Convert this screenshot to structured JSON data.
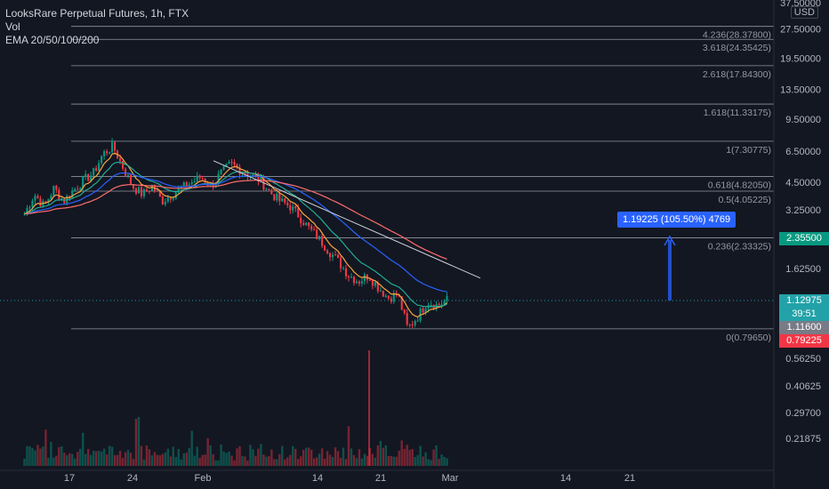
{
  "legend": {
    "title": "LooksRare Perpetual Futures, 1h, FTX",
    "vol": "Vol",
    "ema": "EMA 20/50/100/200"
  },
  "currency": "USD",
  "price_tags": [
    {
      "key": "target",
      "value": "2.35500",
      "color": "#089981"
    },
    {
      "key": "last",
      "value": "1.12975",
      "color": "#22a2a8"
    },
    {
      "key": "countdown",
      "value": "39:51",
      "color": "#22a2a8"
    },
    {
      "key": "other",
      "value": "1.11600",
      "color": "#787b86"
    },
    {
      "key": "low",
      "value": "0.79225",
      "color": "#f23645"
    }
  ],
  "measure_label": "1.19225 (105.50%) 4769",
  "chart_data": {
    "type": "candlestick",
    "y_scale": "log",
    "y_tick_labels": [
      "37.50000",
      "27.50000",
      "19.50000",
      "13.50000",
      "9.50000",
      "6.50000",
      "4.50000",
      "3.25000",
      "2.35500",
      "1.62500",
      "1.12975",
      "1.11600",
      "0.79225",
      "0.56250",
      "0.40625",
      "0.29700",
      "0.21875"
    ],
    "x_tick_labels": [
      "17",
      "24",
      "Feb",
      "14",
      "21",
      "Mar",
      "14",
      "21"
    ],
    "fib_levels": [
      {
        "ratio": "4.236",
        "price": "28.37800"
      },
      {
        "ratio": "3.618",
        "price": "24.35425"
      },
      {
        "ratio": "2.618",
        "price": "17.84300"
      },
      {
        "ratio": "1.618",
        "price": "11.33175"
      },
      {
        "ratio": "1",
        "price": "7.30775"
      },
      {
        "ratio": "0.618",
        "price": "4.82050"
      },
      {
        "ratio": "0.5",
        "price": "4.05225"
      },
      {
        "ratio": "0.236",
        "price": "2.33325"
      },
      {
        "ratio": "0",
        "price": "0.79650"
      }
    ],
    "price_path": [
      3.1,
      3.9,
      3.4,
      4.2,
      3.6,
      4.1,
      4.6,
      5.0,
      6.3,
      6.9,
      5.4,
      4.3,
      3.9,
      4.3,
      3.6,
      3.9,
      4.2,
      4.5,
      4.8,
      4.3,
      5.0,
      5.6,
      5.2,
      4.9,
      4.6,
      4.0,
      3.6,
      3.4,
      3.0,
      2.6,
      2.3,
      2.0,
      1.75,
      1.5,
      1.4,
      1.5,
      1.3,
      1.15,
      1.2,
      0.8,
      0.92,
      1.1,
      1.05,
      1.12
    ],
    "trendline": {
      "from": [
        "Feb",
        "5.8"
      ],
      "to": [
        "Mar",
        "1.45"
      ]
    },
    "series": [
      "Price",
      "Vol",
      "EMA 20",
      "EMA 50",
      "EMA 100",
      "EMA 200"
    ],
    "colors": {
      "up": "#089981",
      "down": "#f23645",
      "ema20": "#f7a440",
      "ema50": "#22ab94",
      "ema100": "#2962ff",
      "ema200": "#ff6d6d"
    }
  }
}
